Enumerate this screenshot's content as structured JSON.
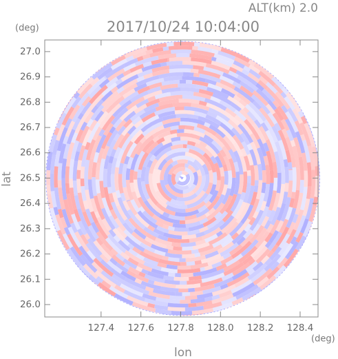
{
  "chart_data": {
    "type": "radar",
    "title": "2017/10/24 10:04:00",
    "annotation": "ALT(km) 2.0",
    "y_unit": "(deg)",
    "x_unit": "(deg)",
    "xlabel": "lon",
    "ylabel": "lat",
    "xlim": [
      127.117,
      128.49
    ],
    "ylim": [
      25.951,
      27.046
    ],
    "xticks": [
      127.4,
      127.6,
      127.8,
      {
        "value": 128.0,
        "label": "128.0"
      },
      128.2,
      128.4
    ],
    "yticks": [
      {
        "value": 26.0,
        "label": "26.0"
      },
      26.1,
      26.2,
      26.3,
      26.4,
      26.5,
      26.6,
      26.7,
      26.8,
      26.9,
      {
        "value": 27.0,
        "label": "27.0"
      }
    ],
    "colors": [
      "#ff9c9c",
      "#a8a8ff"
    ]
  }
}
